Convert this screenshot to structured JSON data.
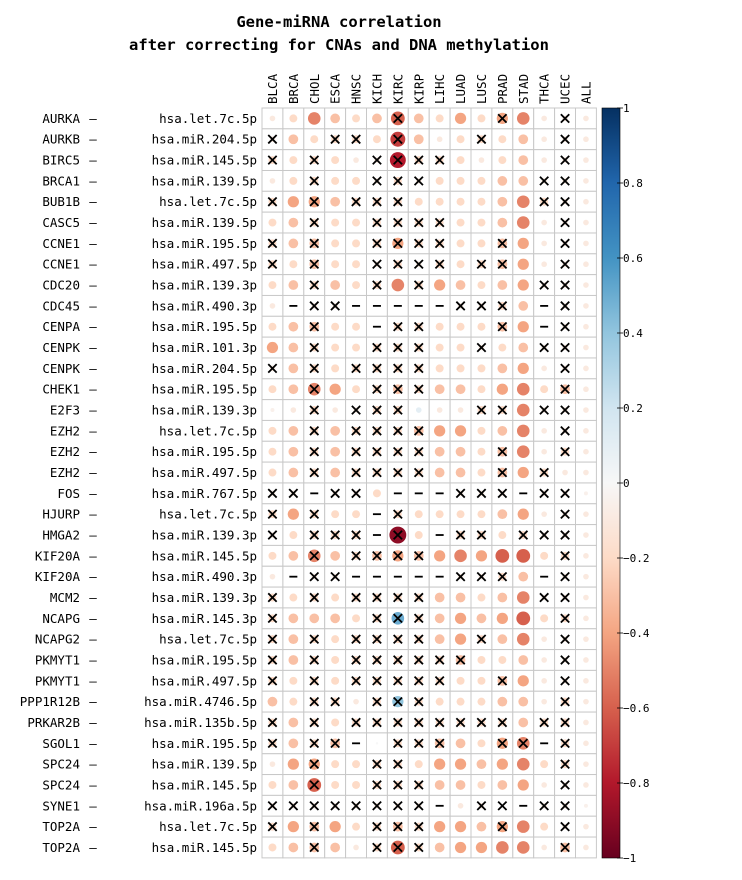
{
  "chart_data": {
    "type": "heatmap",
    "title_lines": [
      "Gene-miRNA correlation",
      "after correcting for CNAs and DNA methylation"
    ],
    "columns": [
      "BLCA",
      "BRCA",
      "CHOL",
      "ESCA",
      "HNSC",
      "KICH",
      "KIRC",
      "KIRP",
      "LIHC",
      "LUAD",
      "LUSC",
      "PRAD",
      "STAD",
      "THCA",
      "UCEC",
      "ALL"
    ],
    "genes": [
      "AURKA",
      "AURKB",
      "BIRC5",
      "BRCA1",
      "BUB1B",
      "CASC5",
      "CCNE1",
      "CCNE1",
      "CDC20",
      "CDC45",
      "CENPA",
      "CENPK",
      "CENPK",
      "CHEK1",
      "E2F3",
      "EZH2",
      "EZH2",
      "EZH2",
      "FOS",
      "HJURP",
      "HMGA2",
      "KIF20A",
      "KIF20A",
      "MCM2",
      "NCAPG",
      "NCAPG2",
      "PKMYT1",
      "PKMYT1",
      "PPP1R12B",
      "PRKAR2B",
      "SGOL1",
      "SPC24",
      "SPC24",
      "SYNE1",
      "TOP2A",
      "TOP2A"
    ],
    "mirnas": [
      "hsa.let.7c.5p",
      "hsa.miR.204.5p",
      "hsa.miR.145.5p",
      "hsa.miR.139.5p",
      "hsa.let.7c.5p",
      "hsa.miR.139.5p",
      "hsa.miR.195.5p",
      "hsa.miR.497.5p",
      "hsa.miR.139.3p",
      "hsa.miR.490.3p",
      "hsa.miR.195.5p",
      "hsa.miR.101.3p",
      "hsa.miR.204.5p",
      "hsa.miR.195.5p",
      "hsa.miR.139.3p",
      "hsa.let.7c.5p",
      "hsa.miR.195.5p",
      "hsa.miR.497.5p",
      "hsa.miR.767.5p",
      "hsa.let.7c.5p",
      "hsa.miR.139.3p",
      "hsa.miR.145.5p",
      "hsa.miR.490.3p",
      "hsa.miR.139.3p",
      "hsa.miR.145.3p",
      "hsa.let.7c.5p",
      "hsa.miR.195.5p",
      "hsa.miR.497.5p",
      "hsa.miR.4746.5p",
      "hsa.miR.135b.5p",
      "hsa.miR.195.5p",
      "hsa.miR.139.5p",
      "hsa.miR.145.5p",
      "hsa.miR.196a.5p",
      "hsa.let.7c.5p",
      "hsa.miR.145.5p"
    ],
    "values": [
      [
        -0.1,
        -0.2,
        -0.5,
        -0.3,
        -0.2,
        -0.3,
        -0.6,
        -0.3,
        -0.2,
        -0.4,
        -0.2,
        -0.4,
        -0.5,
        -0.1,
        -0.1,
        -0.1
      ],
      [
        -0.1,
        -0.3,
        -0.2,
        -0.2,
        -0.2,
        -0.2,
        -0.7,
        -0.3,
        -0.1,
        -0.2,
        -0.2,
        -0.2,
        -0.3,
        -0.1,
        -0.1,
        -0.1
      ],
      [
        -0.2,
        -0.2,
        -0.2,
        -0.2,
        -0.1,
        -0.1,
        -0.8,
        -0.2,
        -0.2,
        -0.2,
        -0.1,
        -0.2,
        -0.3,
        -0.1,
        -0.1,
        -0.1
      ],
      [
        -0.1,
        -0.2,
        -0.2,
        -0.2,
        -0.2,
        -0.1,
        -0.2,
        -0.1,
        -0.2,
        -0.2,
        -0.2,
        -0.3,
        -0.3,
        -0.1,
        -0.1,
        -0.1
      ],
      [
        -0.2,
        -0.4,
        -0.4,
        -0.3,
        -0.2,
        -0.2,
        -0.2,
        -0.2,
        -0.2,
        -0.2,
        -0.2,
        -0.3,
        -0.5,
        -0.2,
        -0.1,
        -0.1
      ],
      [
        -0.2,
        -0.3,
        -0.2,
        -0.2,
        -0.2,
        -0.2,
        -0.2,
        -0.2,
        -0.2,
        -0.2,
        -0.2,
        -0.3,
        -0.5,
        -0.1,
        -0.1,
        -0.1
      ],
      [
        -0.2,
        -0.3,
        -0.3,
        -0.2,
        -0.2,
        -0.2,
        -0.4,
        -0.2,
        -0.2,
        -0.2,
        -0.2,
        -0.3,
        -0.4,
        -0.1,
        -0.1,
        -0.1
      ],
      [
        -0.2,
        -0.2,
        -0.3,
        -0.2,
        -0.2,
        -0.1,
        -0.2,
        -0.1,
        -0.2,
        -0.2,
        -0.2,
        -0.3,
        -0.4,
        -0.1,
        -0.1,
        -0.1
      ],
      [
        -0.2,
        -0.3,
        -0.2,
        -0.3,
        -0.2,
        -0.2,
        -0.5,
        -0.2,
        -0.4,
        -0.3,
        -0.2,
        -0.3,
        -0.4,
        -0.1,
        -0.1,
        -0.1
      ],
      [
        -0.1,
        0.0,
        -0.1,
        -0.1,
        0.0,
        0.0,
        0.0,
        0.0,
        -0.1,
        -0.1,
        -0.1,
        -0.2,
        -0.3,
        0.0,
        -0.1,
        -0.1
      ],
      [
        -0.2,
        -0.3,
        -0.3,
        -0.2,
        -0.2,
        0.0,
        -0.2,
        -0.2,
        -0.2,
        -0.2,
        -0.2,
        -0.3,
        -0.4,
        0.0,
        -0.1,
        -0.1
      ],
      [
        -0.4,
        -0.3,
        -0.2,
        -0.2,
        -0.2,
        -0.2,
        -0.2,
        -0.2,
        -0.2,
        -0.2,
        -0.1,
        -0.2,
        -0.3,
        -0.1,
        -0.1,
        -0.1
      ],
      [
        -0.1,
        -0.3,
        -0.2,
        -0.2,
        -0.2,
        -0.2,
        -0.2,
        -0.2,
        -0.2,
        -0.2,
        -0.2,
        -0.3,
        -0.4,
        -0.1,
        -0.1,
        -0.1
      ],
      [
        -0.2,
        -0.3,
        -0.5,
        -0.4,
        -0.2,
        -0.2,
        -0.3,
        -0.2,
        -0.3,
        -0.3,
        -0.2,
        -0.4,
        -0.5,
        -0.2,
        -0.3,
        -0.1
      ],
      [
        -0.05,
        -0.1,
        -0.2,
        -0.1,
        -0.1,
        -0.2,
        -0.2,
        0.1,
        -0.1,
        -0.1,
        -0.2,
        -0.2,
        -0.5,
        -0.1,
        -0.1,
        -0.1
      ],
      [
        -0.2,
        -0.3,
        -0.2,
        -0.3,
        -0.2,
        -0.2,
        -0.2,
        -0.3,
        -0.4,
        -0.4,
        -0.2,
        -0.3,
        -0.5,
        -0.1,
        -0.1,
        -0.1
      ],
      [
        -0.2,
        -0.3,
        -0.2,
        -0.3,
        -0.2,
        -0.2,
        -0.2,
        -0.2,
        -0.3,
        -0.3,
        -0.2,
        -0.3,
        -0.5,
        -0.1,
        -0.2,
        -0.1
      ],
      [
        -0.2,
        -0.3,
        -0.2,
        -0.3,
        -0.2,
        -0.2,
        -0.2,
        -0.2,
        -0.3,
        -0.3,
        -0.2,
        -0.3,
        -0.4,
        -0.2,
        -0.1,
        -0.1
      ],
      [
        -0.1,
        -0.1,
        0.0,
        -0.1,
        -0.1,
        -0.2,
        0.0,
        0.0,
        -0.1,
        -0.1,
        -0.1,
        -0.1,
        0.0,
        -0.1,
        -0.1,
        -0.05
      ],
      [
        -0.2,
        -0.4,
        -0.2,
        -0.2,
        -0.2,
        0.0,
        -0.2,
        -0.2,
        -0.2,
        -0.2,
        -0.2,
        -0.3,
        -0.4,
        -0.1,
        -0.1,
        -0.1
      ],
      [
        -0.1,
        -0.2,
        -0.2,
        -0.2,
        -0.2,
        0.0,
        -0.9,
        -0.2,
        0.0,
        -0.2,
        -0.2,
        -0.2,
        -0.2,
        -0.1,
        -0.1,
        -0.1
      ],
      [
        -0.2,
        -0.3,
        -0.5,
        -0.3,
        -0.2,
        -0.3,
        -0.4,
        -0.3,
        -0.4,
        -0.5,
        -0.4,
        -0.6,
        -0.6,
        -0.2,
        -0.2,
        -0.1
      ],
      [
        -0.1,
        0.0,
        -0.1,
        -0.1,
        0.0,
        0.0,
        0.0,
        0.0,
        -0.1,
        -0.1,
        -0.1,
        -0.2,
        -0.3,
        0.0,
        -0.1,
        -0.1
      ],
      [
        -0.2,
        -0.2,
        -0.2,
        -0.2,
        -0.2,
        -0.2,
        -0.2,
        -0.2,
        -0.3,
        -0.3,
        -0.2,
        -0.3,
        -0.5,
        -0.1,
        -0.1,
        -0.1
      ],
      [
        -0.2,
        -0.3,
        -0.3,
        -0.3,
        -0.2,
        -0.2,
        0.5,
        -0.2,
        -0.3,
        -0.4,
        -0.3,
        -0.4,
        -0.6,
        -0.2,
        -0.2,
        -0.1
      ],
      [
        -0.2,
        -0.3,
        -0.2,
        -0.2,
        -0.2,
        -0.2,
        -0.2,
        -0.2,
        -0.3,
        -0.4,
        -0.2,
        -0.3,
        -0.5,
        -0.1,
        -0.1,
        -0.1
      ],
      [
        -0.2,
        -0.3,
        -0.2,
        -0.2,
        -0.2,
        -0.2,
        -0.2,
        -0.2,
        -0.2,
        -0.3,
        -0.2,
        -0.2,
        -0.3,
        -0.1,
        -0.1,
        -0.1
      ],
      [
        -0.2,
        -0.2,
        -0.2,
        -0.2,
        -0.2,
        -0.2,
        -0.2,
        -0.2,
        -0.2,
        -0.2,
        -0.2,
        -0.3,
        -0.4,
        -0.1,
        -0.1,
        -0.1
      ],
      [
        -0.3,
        -0.2,
        -0.2,
        -0.2,
        -0.1,
        -0.2,
        0.4,
        -0.2,
        -0.2,
        -0.2,
        -0.2,
        -0.3,
        -0.3,
        -0.1,
        -0.2,
        -0.1
      ],
      [
        -0.2,
        -0.3,
        -0.2,
        -0.2,
        -0.2,
        -0.2,
        -0.2,
        -0.2,
        -0.2,
        -0.2,
        -0.2,
        -0.2,
        -0.3,
        -0.2,
        -0.2,
        -0.1
      ],
      [
        -0.2,
        -0.3,
        -0.2,
        -0.3,
        -0.2,
        0.0,
        -0.2,
        -0.2,
        -0.3,
        -0.3,
        -0.2,
        -0.4,
        -0.5,
        0.0,
        -0.2,
        -0.1
      ],
      [
        -0.1,
        -0.4,
        -0.4,
        -0.2,
        -0.2,
        -0.2,
        -0.2,
        -0.2,
        -0.4,
        -0.4,
        -0.3,
        -0.4,
        -0.5,
        -0.2,
        -0.2,
        -0.1
      ],
      [
        -0.2,
        -0.3,
        -0.6,
        -0.2,
        -0.2,
        -0.2,
        -0.2,
        -0.2,
        -0.3,
        -0.3,
        -0.2,
        -0.3,
        -0.4,
        -0.1,
        -0.1,
        -0.1
      ],
      [
        -0.1,
        -0.1,
        -0.1,
        -0.1,
        -0.1,
        -0.1,
        -0.1,
        -0.1,
        0.0,
        -0.1,
        -0.1,
        0.0,
        -0.1,
        -0.1,
        -0.1,
        -0.05
      ],
      [
        -0.2,
        -0.4,
        -0.3,
        -0.4,
        -0.2,
        -0.2,
        -0.3,
        -0.2,
        -0.4,
        -0.4,
        -0.3,
        -0.4,
        -0.5,
        -0.2,
        -0.1,
        -0.1
      ],
      [
        -0.2,
        -0.3,
        -0.3,
        -0.3,
        -0.1,
        -0.2,
        -0.6,
        -0.2,
        -0.3,
        -0.4,
        -0.4,
        -0.5,
        -0.5,
        -0.1,
        -0.3,
        -0.1
      ]
    ],
    "insignificant": [
      [
        0,
        0,
        0,
        0,
        0,
        0,
        1,
        0,
        0,
        0,
        0,
        1,
        0,
        0,
        1,
        0
      ],
      [
        1,
        0,
        0,
        1,
        1,
        0,
        1,
        0,
        0,
        0,
        1,
        0,
        0,
        0,
        1,
        0
      ],
      [
        1,
        0,
        1,
        0,
        0,
        1,
        1,
        1,
        1,
        0,
        0,
        0,
        0,
        0,
        1,
        0
      ],
      [
        0,
        0,
        1,
        0,
        0,
        1,
        1,
        1,
        0,
        0,
        0,
        0,
        0,
        1,
        1,
        0
      ],
      [
        1,
        0,
        1,
        0,
        1,
        1,
        1,
        0,
        0,
        0,
        0,
        0,
        0,
        1,
        1,
        0
      ],
      [
        0,
        0,
        1,
        0,
        0,
        1,
        1,
        1,
        1,
        0,
        0,
        0,
        0,
        0,
        1,
        0
      ],
      [
        1,
        0,
        1,
        0,
        0,
        1,
        1,
        1,
        1,
        0,
        0,
        1,
        0,
        0,
        1,
        0
      ],
      [
        1,
        0,
        1,
        0,
        0,
        1,
        1,
        1,
        1,
        0,
        1,
        1,
        0,
        0,
        1,
        0
      ],
      [
        0,
        0,
        1,
        0,
        0,
        1,
        0,
        1,
        0,
        0,
        0,
        0,
        0,
        1,
        1,
        0
      ],
      [
        0,
        0,
        1,
        1,
        0,
        0,
        0,
        0,
        0,
        1,
        1,
        1,
        0,
        0,
        1,
        0
      ],
      [
        0,
        0,
        1,
        0,
        0,
        0,
        1,
        1,
        0,
        0,
        0,
        1,
        0,
        0,
        1,
        0
      ],
      [
        0,
        0,
        1,
        0,
        0,
        1,
        1,
        1,
        0,
        0,
        1,
        0,
        0,
        1,
        1,
        0
      ],
      [
        1,
        0,
        1,
        0,
        1,
        1,
        1,
        1,
        0,
        0,
        0,
        0,
        0,
        0,
        1,
        0
      ],
      [
        0,
        0,
        1,
        0,
        0,
        1,
        1,
        1,
        0,
        0,
        0,
        0,
        0,
        0,
        1,
        0
      ],
      [
        0,
        0,
        1,
        0,
        1,
        1,
        1,
        0,
        0,
        0,
        1,
        1,
        0,
        1,
        1,
        0
      ],
      [
        0,
        0,
        1,
        0,
        1,
        1,
        1,
        1,
        0,
        0,
        0,
        0,
        0,
        0,
        1,
        0
      ],
      [
        0,
        0,
        1,
        0,
        1,
        1,
        1,
        1,
        0,
        0,
        0,
        1,
        0,
        0,
        1,
        0
      ],
      [
        0,
        0,
        1,
        0,
        1,
        1,
        1,
        1,
        0,
        0,
        0,
        1,
        0,
        1,
        0,
        0
      ],
      [
        1,
        1,
        0,
        1,
        1,
        0,
        0,
        0,
        0,
        1,
        1,
        1,
        0,
        1,
        1,
        0
      ],
      [
        1,
        0,
        1,
        0,
        0,
        0,
        1,
        0,
        0,
        0,
        0,
        0,
        0,
        0,
        1,
        0
      ],
      [
        1,
        0,
        1,
        1,
        1,
        0,
        1,
        0,
        0,
        1,
        1,
        0,
        1,
        1,
        1,
        0
      ],
      [
        0,
        0,
        1,
        0,
        1,
        1,
        1,
        1,
        0,
        0,
        0,
        0,
        0,
        0,
        1,
        0
      ],
      [
        0,
        0,
        1,
        1,
        0,
        0,
        0,
        0,
        0,
        1,
        1,
        1,
        0,
        0,
        1,
        0
      ],
      [
        1,
        0,
        1,
        0,
        1,
        1,
        1,
        1,
        0,
        0,
        0,
        0,
        0,
        1,
        1,
        0
      ],
      [
        1,
        0,
        0,
        0,
        0,
        1,
        1,
        1,
        0,
        0,
        0,
        0,
        0,
        0,
        1,
        0
      ],
      [
        1,
        0,
        1,
        0,
        1,
        1,
        1,
        1,
        0,
        0,
        1,
        0,
        0,
        0,
        1,
        0
      ],
      [
        1,
        0,
        1,
        0,
        1,
        1,
        1,
        1,
        1,
        1,
        0,
        0,
        0,
        0,
        1,
        0
      ],
      [
        1,
        0,
        1,
        0,
        1,
        1,
        1,
        1,
        1,
        0,
        0,
        1,
        0,
        0,
        1,
        0
      ],
      [
        0,
        0,
        1,
        1,
        0,
        1,
        1,
        1,
        0,
        0,
        0,
        0,
        0,
        0,
        1,
        0
      ],
      [
        1,
        0,
        1,
        0,
        1,
        1,
        1,
        1,
        1,
        1,
        1,
        1,
        0,
        1,
        1,
        0
      ],
      [
        1,
        0,
        1,
        1,
        0,
        0,
        1,
        1,
        1,
        0,
        0,
        1,
        1,
        0,
        1,
        0
      ],
      [
        0,
        0,
        1,
        0,
        0,
        1,
        1,
        0,
        0,
        0,
        0,
        0,
        0,
        0,
        1,
        0
      ],
      [
        0,
        0,
        1,
        0,
        0,
        1,
        1,
        1,
        0,
        0,
        0,
        0,
        0,
        0,
        1,
        0
      ],
      [
        1,
        1,
        1,
        1,
        1,
        1,
        1,
        1,
        1,
        0,
        1,
        1,
        0,
        1,
        1,
        0
      ],
      [
        1,
        0,
        1,
        0,
        0,
        1,
        1,
        1,
        0,
        0,
        0,
        1,
        0,
        0,
        1,
        0
      ],
      [
        0,
        0,
        1,
        0,
        0,
        1,
        1,
        1,
        0,
        0,
        0,
        0,
        0,
        0,
        1,
        0
      ]
    ],
    "dash_cells": [
      [
        9,
        1
      ],
      [
        9,
        4
      ],
      [
        9,
        5
      ],
      [
        9,
        6
      ],
      [
        9,
        7
      ],
      [
        9,
        8
      ],
      [
        9,
        13
      ],
      [
        10,
        5
      ],
      [
        10,
        13
      ],
      [
        18,
        2
      ],
      [
        18,
        6
      ],
      [
        18,
        7
      ],
      [
        18,
        8
      ],
      [
        18,
        12
      ],
      [
        19,
        5
      ],
      [
        20,
        5
      ],
      [
        20,
        8
      ],
      [
        22,
        1
      ],
      [
        22,
        4
      ],
      [
        22,
        5
      ],
      [
        22,
        6
      ],
      [
        22,
        7
      ],
      [
        22,
        8
      ],
      [
        22,
        13
      ],
      [
        30,
        4
      ],
      [
        30,
        13
      ],
      [
        33,
        8
      ],
      [
        33,
        12
      ]
    ],
    "colorbar": {
      "ticks": [
        1,
        0.8,
        0.6,
        0.4,
        0.2,
        0,
        -0.2,
        -0.4,
        -0.6,
        -0.8,
        -1
      ],
      "tick_labels": [
        "1",
        "0.8",
        "0.6",
        "0.4",
        "0.2",
        "0",
        "−0.2",
        "−0.4",
        "−0.6",
        "−0.8",
        "−1"
      ],
      "range": [
        -1,
        1
      ],
      "colors": {
        "neg": "#67001f",
        "mid": "#f7f7f7",
        "pos": "#053061"
      }
    },
    "cell_border_color": "#c8c8c8",
    "marker_color": "#000000"
  }
}
